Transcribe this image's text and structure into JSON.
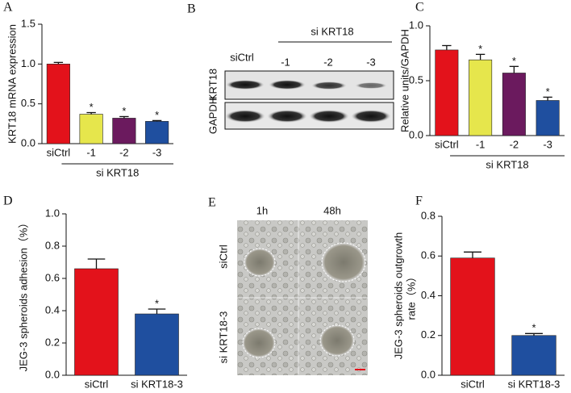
{
  "chart_data": [
    {
      "type": "bar",
      "panel": "A",
      "ylabel": [
        "KRT18 mRNA expression"
      ],
      "categories": [
        "siCtrl",
        "-1",
        "-2",
        "-3"
      ],
      "group_label": "si KRT18",
      "values": [
        1.0,
        0.37,
        0.32,
        0.28
      ],
      "errors": [
        0.02,
        0.02,
        0.02,
        0.01
      ],
      "sig_labels": [
        null,
        "*",
        "*",
        "*"
      ],
      "colors": [
        "#e3121b",
        "#e6e64c",
        "#6b1a5e",
        "#1f4f9f"
      ],
      "ylim": [
        0,
        1.5
      ],
      "yticks": [
        {
          "value": 0,
          "label": "0.0"
        },
        0.5,
        {
          "value": 1,
          "label": "1.0"
        },
        1.5
      ]
    },
    {
      "type": "bar",
      "panel": "C",
      "ylabel": [
        "Relative units/GAPDH"
      ],
      "categories": [
        "siCtrl",
        "-1",
        "-2",
        "-3"
      ],
      "group_label": "si KRT18",
      "values": [
        0.78,
        0.69,
        0.57,
        0.32
      ],
      "errors": [
        0.04,
        0.05,
        0.06,
        0.03
      ],
      "sig_labels": [
        null,
        "*",
        "*",
        "*"
      ],
      "colors": [
        "#e3121b",
        "#e6e64c",
        "#6b1a5e",
        "#1f4f9f"
      ],
      "ylim": [
        0,
        1.0
      ],
      "yticks": [
        {
          "value": 0,
          "label": "0.0"
        },
        0.5,
        {
          "value": 1,
          "label": "1.0"
        }
      ]
    },
    {
      "type": "bar",
      "panel": "D",
      "ylabel": [
        "JEG-3 spheroids adhesion（%）"
      ],
      "categories": [
        "siCtrl",
        "si KRT18-3"
      ],
      "values": [
        0.66,
        0.38
      ],
      "errors": [
        0.06,
        0.03
      ],
      "sig_labels": [
        null,
        "*"
      ],
      "colors": [
        "#e3121b",
        "#1f4f9f"
      ],
      "ylim": [
        0,
        1.0
      ],
      "yticks": [
        {
          "value": 0,
          "label": "0.0"
        },
        0.2,
        0.4,
        0.6,
        0.8,
        {
          "value": 1,
          "label": "1.0"
        }
      ]
    },
    {
      "type": "bar",
      "panel": "F",
      "ylabel": [
        "JEG-3 spheroids outgrowth",
        "rate（%）"
      ],
      "categories": [
        "siCtrl",
        "si KRT18-3"
      ],
      "values": [
        0.59,
        0.2
      ],
      "errors": [
        0.03,
        0.01
      ],
      "sig_labels": [
        null,
        "*"
      ],
      "colors": [
        "#e3121b",
        "#1f4f9f"
      ],
      "ylim": [
        0,
        0.8
      ],
      "yticks": [
        {
          "value": 0,
          "label": "0.0"
        },
        0.2,
        0.4,
        0.6,
        0.8
      ]
    }
  ],
  "blot": {
    "panel": "B",
    "control": "siCtrl",
    "group_label": "si KRT18",
    "lanes": [
      "-1",
      "-2",
      "-3"
    ],
    "rows": [
      "KRT18",
      "GAPDH"
    ]
  },
  "micrograph": {
    "panel": "E",
    "columns": [
      "1h",
      "48h"
    ],
    "rows": [
      "siCtrl",
      "si KRT18-3"
    ]
  }
}
